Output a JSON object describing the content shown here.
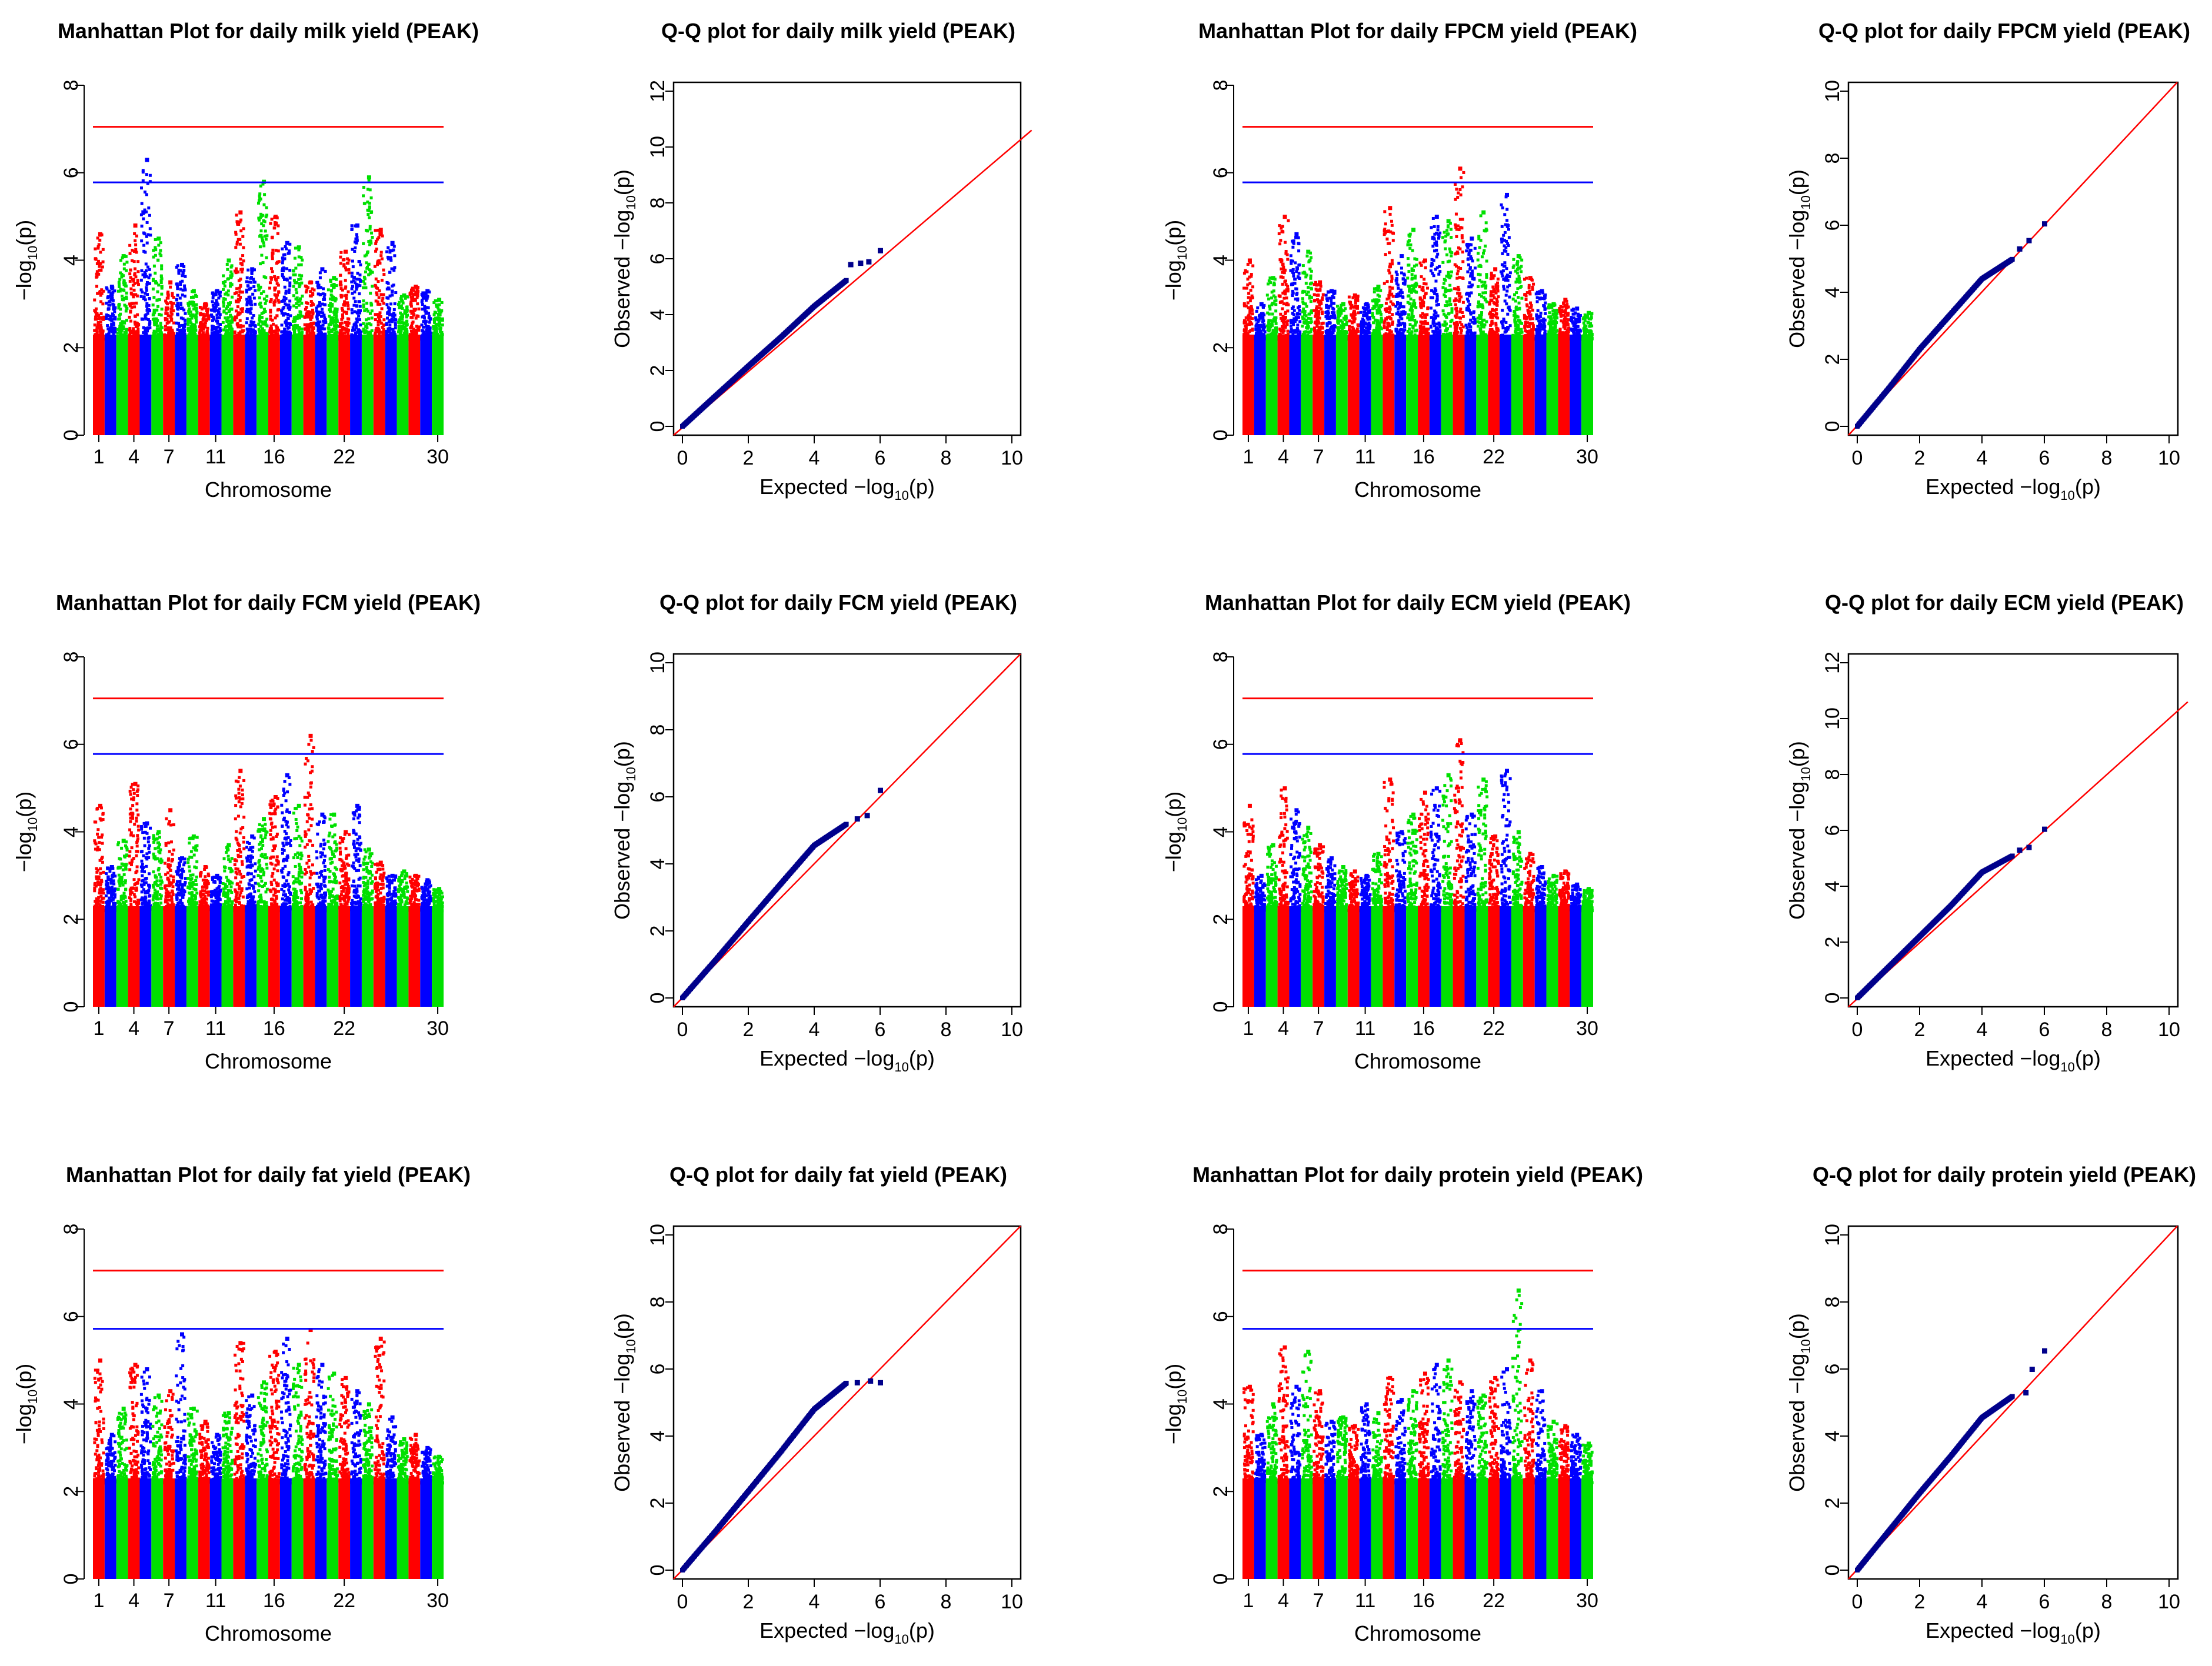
{
  "chart_data": [
    {
      "type": "scatter",
      "kind": "manhattan",
      "title": "Manhattan Plot for daily milk yield (PEAK)",
      "xlabel": "Chromosome",
      "ylabel_prefix": "−log",
      "ylabel_sub": "10",
      "ylabel_suffix": "(p)",
      "ylim": [
        0,
        8
      ],
      "yticks": [
        "0",
        "2",
        "4",
        "6",
        "8"
      ],
      "x_tick_labels": [
        "1",
        "4",
        "7",
        "11",
        "16",
        "22",
        "30"
      ],
      "chromosomes": 30,
      "colors": [
        "#ff0000",
        "#0000ff",
        "#00e000"
      ],
      "thresholds": [
        {
          "value": 7.05,
          "color": "#ff0000"
        },
        {
          "value": 5.78,
          "color": "#0000ff"
        }
      ],
      "chromosome_peak_values": [
        4.6,
        3.4,
        4.1,
        4.8,
        6.3,
        4.5,
        3.5,
        3.9,
        3.3,
        3.0,
        3.3,
        4.0,
        5.1,
        3.8,
        5.8,
        5.0,
        4.4,
        4.3,
        3.5,
        3.8,
        3.6,
        4.2,
        4.8,
        5.9,
        4.7,
        4.4,
        3.2,
        3.4,
        3.3,
        3.1
      ]
    },
    {
      "type": "scatter",
      "kind": "qq",
      "title": "Q-Q plot for daily milk yield (PEAK)",
      "xlabel_prefix": "Expected  −log",
      "xlabel_sub": "10",
      "xlabel_suffix": "(p)",
      "ylabel_prefix": "Observed  −log",
      "ylabel_sub": "10",
      "ylabel_suffix": "(p)",
      "xlim": [
        0,
        10
      ],
      "ylim": [
        0,
        12
      ],
      "xticks": [
        "0",
        "2",
        "4",
        "6",
        "8",
        "10"
      ],
      "yticks": [
        "0",
        "2",
        "4",
        "6",
        "8",
        "10",
        "12"
      ],
      "curve": [
        [
          0,
          0
        ],
        [
          1,
          1.08
        ],
        [
          2,
          2.15
        ],
        [
          3,
          3.2
        ],
        [
          4,
          4.3
        ],
        [
          5,
          5.25
        ]
      ],
      "tail_points": [
        [
          5.1,
          5.8
        ],
        [
          5.4,
          5.85
        ],
        [
          5.65,
          5.9
        ],
        [
          6.0,
          6.3
        ]
      ]
    },
    {
      "type": "scatter",
      "kind": "manhattan",
      "title": "Manhattan Plot for daily FPCM yield (PEAK)",
      "xlabel": "Chromosome",
      "ylabel_prefix": "−log",
      "ylabel_sub": "10",
      "ylabel_suffix": "(p)",
      "ylim": [
        0,
        8
      ],
      "yticks": [
        "0",
        "2",
        "4",
        "6",
        "8"
      ],
      "x_tick_labels": [
        "1",
        "4",
        "7",
        "11",
        "16",
        "22",
        "30"
      ],
      "chromosomes": 30,
      "colors": [
        "#ff0000",
        "#0000ff",
        "#00e000"
      ],
      "thresholds": [
        {
          "value": 7.05,
          "color": "#ff0000"
        },
        {
          "value": 5.78,
          "color": "#0000ff"
        }
      ],
      "chromosome_peak_values": [
        4.0,
        3.0,
        3.6,
        5.0,
        4.6,
        4.2,
        3.5,
        3.3,
        3.0,
        3.2,
        3.0,
        3.4,
        5.2,
        4.1,
        4.7,
        4.0,
        5.0,
        4.9,
        6.1,
        4.5,
        5.1,
        3.8,
        5.5,
        4.1,
        3.6,
        3.3,
        3.0,
        3.1,
        2.9,
        2.8
      ]
    },
    {
      "type": "scatter",
      "kind": "qq",
      "title": "Q-Q plot for daily FPCM yield (PEAK)",
      "xlabel_prefix": "Expected  −log",
      "xlabel_sub": "10",
      "xlabel_suffix": "(p)",
      "ylabel_prefix": "Observed  −log",
      "ylabel_sub": "10",
      "ylabel_suffix": "(p)",
      "xlim": [
        0,
        10
      ],
      "ylim": [
        0,
        10
      ],
      "xticks": [
        "0",
        "2",
        "4",
        "6",
        "8",
        "10"
      ],
      "yticks": [
        "0",
        "2",
        "4",
        "6",
        "8",
        "10"
      ],
      "curve": [
        [
          0,
          0
        ],
        [
          1,
          1.12
        ],
        [
          2,
          2.3
        ],
        [
          3,
          3.35
        ],
        [
          4,
          4.4
        ],
        [
          5,
          5.0
        ]
      ],
      "tail_points": [
        [
          5.2,
          5.3
        ],
        [
          5.5,
          5.55
        ],
        [
          6.0,
          6.05
        ]
      ]
    },
    {
      "type": "scatter",
      "kind": "manhattan",
      "title": "Manhattan Plot for daily FCM yield (PEAK)",
      "xlabel": "Chromosome",
      "ylabel_prefix": "−log",
      "ylabel_sub": "10",
      "ylabel_suffix": "(p)",
      "ylim": [
        0,
        8
      ],
      "yticks": [
        "0",
        "2",
        "4",
        "6",
        "8"
      ],
      "x_tick_labels": [
        "1",
        "4",
        "7",
        "11",
        "16",
        "22",
        "30"
      ],
      "chromosomes": 30,
      "colors": [
        "#ff0000",
        "#0000ff",
        "#00e000"
      ],
      "thresholds": [
        {
          "value": 7.05,
          "color": "#ff0000"
        },
        {
          "value": 5.78,
          "color": "#0000ff"
        }
      ],
      "chromosome_peak_values": [
        4.6,
        3.2,
        3.8,
        5.1,
        4.2,
        4.0,
        4.5,
        3.4,
        3.9,
        3.2,
        3.0,
        3.7,
        5.4,
        3.9,
        4.3,
        4.8,
        5.3,
        4.6,
        6.2,
        4.4,
        4.4,
        4.0,
        4.6,
        3.6,
        3.3,
        3.0,
        3.1,
        3.0,
        2.9,
        2.7
      ]
    },
    {
      "type": "scatter",
      "kind": "qq",
      "title": "Q-Q plot for daily FCM yield (PEAK)",
      "xlabel_prefix": "Expected  −log",
      "xlabel_sub": "10",
      "xlabel_suffix": "(p)",
      "ylabel_prefix": "Observed  −log",
      "ylabel_sub": "10",
      "ylabel_suffix": "(p)",
      "xlim": [
        0,
        10
      ],
      "ylim": [
        0,
        10
      ],
      "xticks": [
        "0",
        "2",
        "4",
        "6",
        "8",
        "10"
      ],
      "yticks": [
        "0",
        "2",
        "4",
        "6",
        "8",
        "10"
      ],
      "curve": [
        [
          0,
          0
        ],
        [
          1,
          1.12
        ],
        [
          2,
          2.28
        ],
        [
          3,
          3.42
        ],
        [
          4,
          4.55
        ],
        [
          5,
          5.2
        ]
      ],
      "tail_points": [
        [
          5.3,
          5.35
        ],
        [
          5.6,
          5.45
        ],
        [
          6.0,
          6.2
        ]
      ]
    },
    {
      "type": "scatter",
      "kind": "manhattan",
      "title": "Manhattan Plot for daily ECM yield (PEAK)",
      "xlabel": "Chromosome",
      "ylabel_prefix": "−log",
      "ylabel_sub": "10",
      "ylabel_suffix": "(p)",
      "ylim": [
        0,
        8
      ],
      "yticks": [
        "0",
        "2",
        "4",
        "6",
        "8"
      ],
      "x_tick_labels": [
        "1",
        "4",
        "7",
        "11",
        "16",
        "22",
        "30"
      ],
      "chromosomes": 30,
      "colors": [
        "#ff0000",
        "#0000ff",
        "#00e000"
      ],
      "thresholds": [
        {
          "value": 7.05,
          "color": "#ff0000"
        },
        {
          "value": 5.78,
          "color": "#0000ff"
        }
      ],
      "chromosome_peak_values": [
        4.6,
        3.0,
        3.7,
        5.0,
        4.5,
        4.1,
        3.7,
        3.4,
        3.2,
        3.1,
        3.0,
        3.5,
        5.2,
        4.0,
        4.4,
        4.9,
        5.0,
        5.3,
        6.1,
        4.4,
        5.2,
        3.9,
        5.4,
        4.0,
        3.5,
        3.2,
        3.0,
        3.1,
        2.8,
        2.7
      ]
    },
    {
      "type": "scatter",
      "kind": "qq",
      "title": "Q-Q plot for daily ECM yield (PEAK)",
      "xlabel_prefix": "Expected  −log",
      "xlabel_sub": "10",
      "xlabel_suffix": "(p)",
      "ylabel_prefix": "Observed  −log",
      "ylabel_sub": "10",
      "ylabel_suffix": "(p)",
      "xlim": [
        0,
        10
      ],
      "ylim": [
        0,
        12
      ],
      "xticks": [
        "0",
        "2",
        "4",
        "6",
        "8",
        "10"
      ],
      "yticks": [
        "0",
        "2",
        "4",
        "6",
        "8",
        "10",
        "12"
      ],
      "curve": [
        [
          0,
          0
        ],
        [
          1,
          1.1
        ],
        [
          2,
          2.2
        ],
        [
          3,
          3.3
        ],
        [
          4,
          4.5
        ],
        [
          5,
          5.1
        ]
      ],
      "tail_points": [
        [
          5.2,
          5.3
        ],
        [
          5.5,
          5.4
        ],
        [
          6.0,
          6.05
        ]
      ]
    },
    {
      "type": "scatter",
      "kind": "manhattan",
      "title": "Manhattan Plot for daily fat yield (PEAK)",
      "xlabel": "Chromosome",
      "ylabel_prefix": "−log",
      "ylabel_sub": "10",
      "ylabel_suffix": "(p)",
      "ylim": [
        0,
        8
      ],
      "yticks": [
        "0",
        "2",
        "4",
        "6",
        "8"
      ],
      "x_tick_labels": [
        "1",
        "4",
        "7",
        "11",
        "16",
        "22",
        "30"
      ],
      "chromosomes": 30,
      "colors": [
        "#ff0000",
        "#0000ff",
        "#00e000"
      ],
      "thresholds": [
        {
          "value": 7.05,
          "color": "#ff0000"
        },
        {
          "value": 5.72,
          "color": "#0000ff"
        }
      ],
      "chromosome_peak_values": [
        5.0,
        3.3,
        3.9,
        4.9,
        4.8,
        4.2,
        4.3,
        5.6,
        3.9,
        3.6,
        3.3,
        3.8,
        5.4,
        4.2,
        4.5,
        5.2,
        5.5,
        4.9,
        5.7,
        4.9,
        4.7,
        4.6,
        4.3,
        4.0,
        5.5,
        3.7,
        3.2,
        3.3,
        3.0,
        2.8
      ]
    },
    {
      "type": "scatter",
      "kind": "qq",
      "title": "Q-Q plot for daily fat yield (PEAK)",
      "xlabel_prefix": "Expected  −log",
      "xlabel_sub": "10",
      "xlabel_suffix": "(p)",
      "ylabel_prefix": "Observed  −log",
      "ylabel_sub": "10",
      "ylabel_suffix": "(p)",
      "xlim": [
        0,
        10
      ],
      "ylim": [
        0,
        10
      ],
      "xticks": [
        "0",
        "2",
        "4",
        "6",
        "8",
        "10"
      ],
      "yticks": [
        "0",
        "2",
        "4",
        "6",
        "8",
        "10"
      ],
      "curve": [
        [
          0,
          0
        ],
        [
          1,
          1.15
        ],
        [
          2,
          2.35
        ],
        [
          3,
          3.55
        ],
        [
          4,
          4.8
        ],
        [
          5,
          5.6
        ]
      ],
      "tail_points": [
        [
          5.3,
          5.6
        ],
        [
          5.7,
          5.65
        ],
        [
          6.0,
          5.6
        ]
      ]
    },
    {
      "type": "scatter",
      "kind": "manhattan",
      "title": "Manhattan Plot for daily protein yield (PEAK)",
      "xlabel": "Chromosome",
      "ylabel_prefix": "−log",
      "ylabel_sub": "10",
      "ylabel_suffix": "(p)",
      "ylim": [
        0,
        8
      ],
      "yticks": [
        "0",
        "2",
        "4",
        "6",
        "8"
      ],
      "x_tick_labels": [
        "1",
        "4",
        "7",
        "11",
        "16",
        "22",
        "30"
      ],
      "chromosomes": 30,
      "colors": [
        "#ff0000",
        "#0000ff",
        "#00e000"
      ],
      "thresholds": [
        {
          "value": 7.05,
          "color": "#ff0000"
        },
        {
          "value": 5.72,
          "color": "#0000ff"
        }
      ],
      "chromosome_peak_values": [
        4.4,
        3.3,
        4.0,
        5.3,
        4.4,
        5.2,
        4.3,
        3.6,
        3.7,
        3.5,
        4.0,
        3.8,
        4.6,
        4.1,
        4.3,
        4.7,
        4.9,
        5.0,
        4.5,
        4.3,
        4.2,
        4.6,
        4.8,
        6.6,
        5.0,
        4.3,
        3.6,
        3.5,
        3.3,
        3.1
      ]
    },
    {
      "type": "scatter",
      "kind": "qq",
      "title": "Q-Q plot for daily protein yield (PEAK)",
      "xlabel_prefix": "Expected  −log",
      "xlabel_sub": "10",
      "xlabel_suffix": "(p)",
      "ylabel_prefix": "Observed  −log",
      "ylabel_sub": "10",
      "ylabel_suffix": "(p)",
      "xlim": [
        0,
        10
      ],
      "ylim": [
        0,
        10
      ],
      "xticks": [
        "0",
        "2",
        "4",
        "6",
        "8",
        "10"
      ],
      "yticks": [
        "0",
        "2",
        "4",
        "6",
        "8",
        "10"
      ],
      "curve": [
        [
          0,
          0
        ],
        [
          1,
          1.15
        ],
        [
          2,
          2.3
        ],
        [
          3,
          3.4
        ],
        [
          4,
          4.55
        ],
        [
          5,
          5.2
        ]
      ],
      "tail_points": [
        [
          5.4,
          5.3
        ],
        [
          5.6,
          6.0
        ],
        [
          6.0,
          6.55
        ]
      ]
    }
  ]
}
